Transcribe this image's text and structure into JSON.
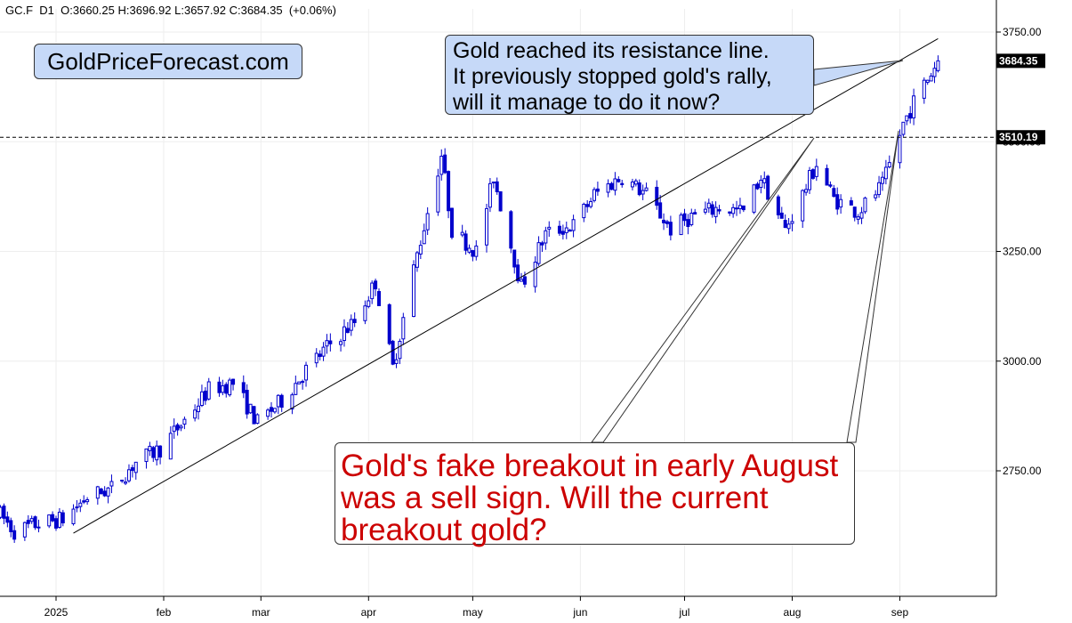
{
  "header": {
    "symbol": "GC.F",
    "timeframe": "D1",
    "open_label": "O:3660.25",
    "high_label": "H:3696.92",
    "low_label": "L:3657.92",
    "close_label": "C:3684.35",
    "change_label": "(+0.06%)"
  },
  "brand": {
    "text": "GoldPriceForecast.com"
  },
  "annotations": {
    "resistance_note": [
      "Gold reached its resistance line.",
      "It previously stopped gold's rally,",
      "will it manage to do it now?"
    ],
    "breakout_note": [
      "Gold's fake breakout in early August",
      "was a sell sign. Will the current",
      "breakout gold?"
    ]
  },
  "colors": {
    "bull_candle": "#0000cc",
    "bear_candle": "#0000cc",
    "annotation_fill": "#c6d9f8",
    "breakout_text": "#cc0000",
    "grid": "#eeeeee"
  },
  "chart_data": {
    "type": "candlestick",
    "instrument": "GC.F",
    "timeframe": "D1",
    "ylim": [
      2520,
      3770
    ],
    "y_ticks": [
      2750,
      3000,
      3250,
      3500,
      3750
    ],
    "y_tick_labels": [
      "2750.00",
      "3000.00",
      "3250.00",
      "3500.00",
      "3750.00"
    ],
    "x_ticks": [
      {
        "label": "2025",
        "date": "2025-01-01"
      },
      {
        "label": "feb",
        "date": "2025-02-01"
      },
      {
        "label": "mar",
        "date": "2025-03-01"
      },
      {
        "label": "apr",
        "date": "2025-04-01"
      },
      {
        "label": "may",
        "date": "2025-05-01"
      },
      {
        "label": "jun",
        "date": "2025-06-01"
      },
      {
        "label": "jul",
        "date": "2025-07-01"
      },
      {
        "label": "aug",
        "date": "2025-08-01"
      },
      {
        "label": "sep",
        "date": "2025-09-01"
      }
    ],
    "price_tags": [
      {
        "label": "3684.35",
        "value": 3684.35,
        "style": "solid"
      },
      {
        "label": "3510.19",
        "value": 3510.19,
        "style": "dashed"
      }
    ],
    "resistance_line": [
      {
        "date": "2025-01-06",
        "value": 2608
      },
      {
        "date": "2025-09-12",
        "value": 3735
      }
    ],
    "path": [
      {
        "date": "2024-12-16",
        "value": 2650
      },
      {
        "date": "2024-12-20",
        "value": 2612
      },
      {
        "date": "2024-12-27",
        "value": 2630
      },
      {
        "date": "2025-01-03",
        "value": 2640
      },
      {
        "date": "2025-01-10",
        "value": 2690
      },
      {
        "date": "2025-01-17",
        "value": 2710
      },
      {
        "date": "2025-01-24",
        "value": 2770
      },
      {
        "date": "2025-01-31",
        "value": 2800
      },
      {
        "date": "2025-02-07",
        "value": 2865
      },
      {
        "date": "2025-02-14",
        "value": 2935
      },
      {
        "date": "2025-02-21",
        "value": 2950
      },
      {
        "date": "2025-02-28",
        "value": 2860
      },
      {
        "date": "2025-03-07",
        "value": 2910
      },
      {
        "date": "2025-03-14",
        "value": 2980
      },
      {
        "date": "2025-03-21",
        "value": 3040
      },
      {
        "date": "2025-03-28",
        "value": 3090
      },
      {
        "date": "2025-04-03",
        "value": 3180
      },
      {
        "date": "2025-04-08",
        "value": 2985
      },
      {
        "date": "2025-04-14",
        "value": 3210
      },
      {
        "date": "2025-04-22",
        "value": 3470
      },
      {
        "date": "2025-04-25",
        "value": 3300
      },
      {
        "date": "2025-05-02",
        "value": 3250
      },
      {
        "date": "2025-05-07",
        "value": 3420
      },
      {
        "date": "2025-05-15",
        "value": 3170
      },
      {
        "date": "2025-05-22",
        "value": 3290
      },
      {
        "date": "2025-05-30",
        "value": 3310
      },
      {
        "date": "2025-06-05",
        "value": 3380
      },
      {
        "date": "2025-06-13",
        "value": 3420
      },
      {
        "date": "2025-06-20",
        "value": 3380
      },
      {
        "date": "2025-06-27",
        "value": 3300
      },
      {
        "date": "2025-07-03",
        "value": 3330
      },
      {
        "date": "2025-07-11",
        "value": 3350
      },
      {
        "date": "2025-07-18",
        "value": 3340
      },
      {
        "date": "2025-07-23",
        "value": 3420
      },
      {
        "date": "2025-07-30",
        "value": 3300
      },
      {
        "date": "2025-08-04",
        "value": 3380
      },
      {
        "date": "2025-08-08",
        "value": 3450
      },
      {
        "date": "2025-08-13",
        "value": 3370
      },
      {
        "date": "2025-08-20",
        "value": 3340
      },
      {
        "date": "2025-08-27",
        "value": 3400
      },
      {
        "date": "2025-09-02",
        "value": 3540
      },
      {
        "date": "2025-09-05",
        "value": 3590
      },
      {
        "date": "2025-09-08",
        "value": 3630
      },
      {
        "date": "2025-09-12",
        "value": 3684.35
      }
    ]
  }
}
